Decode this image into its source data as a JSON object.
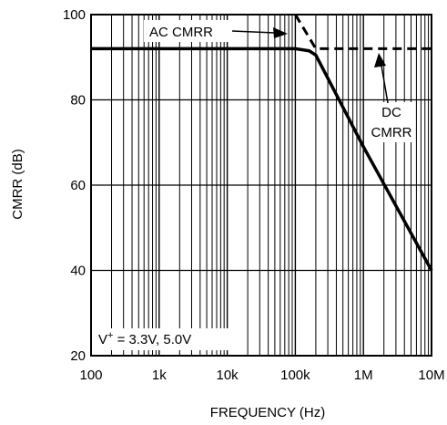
{
  "chart_data": {
    "type": "line",
    "xscale": "log",
    "xlim": [
      100,
      10000000
    ],
    "ylim": [
      20,
      100
    ],
    "xlabel": "FREQUENCY (Hz)",
    "ylabel": "CMRR (dB)",
    "xticks": [
      100,
      1000,
      10000,
      100000,
      1000000,
      10000000
    ],
    "xtick_labels": [
      "100",
      "1k",
      "10k",
      "100k",
      "1M",
      "10M"
    ],
    "yticks": [
      20,
      40,
      60,
      80,
      100
    ],
    "ytick_labels": [
      "20",
      "40",
      "60",
      "80",
      "100"
    ],
    "grid": true,
    "series": [
      {
        "name": "AC CMRR",
        "style": "solid",
        "x": [
          100,
          100000,
          160000,
          200000,
          1000000,
          10000000
        ],
        "y": [
          92,
          92,
          91.5,
          90.5,
          69,
          40
        ]
      },
      {
        "name": "DC CMRR",
        "style": "dashed",
        "x": [
          100000,
          200000,
          10000000
        ],
        "y": [
          100,
          92,
          92
        ]
      }
    ],
    "annotations": {
      "ac_label": "AC CMRR",
      "dc_label_line1": "DC",
      "dc_label_line2": "CMRR",
      "condition_prefix": "V",
      "condition_sup": "+",
      "condition_suffix": " = 3.3V, 5.0V"
    }
  }
}
